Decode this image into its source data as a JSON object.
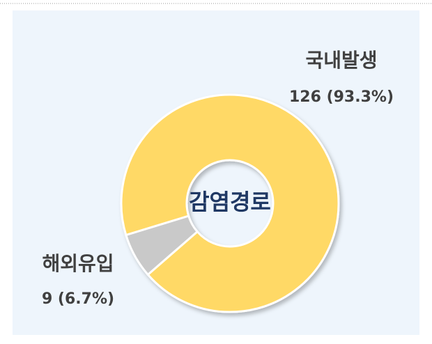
{
  "chart_data": {
    "type": "donut",
    "center_label": "감염경로",
    "categories": [
      "국내발생",
      "해외유입"
    ],
    "values": [
      126,
      9
    ],
    "value_labels": [
      "126 (93.3%)",
      "9 (6.7%)"
    ],
    "colors": [
      "#ffd966",
      "#c9c9c9"
    ]
  }
}
